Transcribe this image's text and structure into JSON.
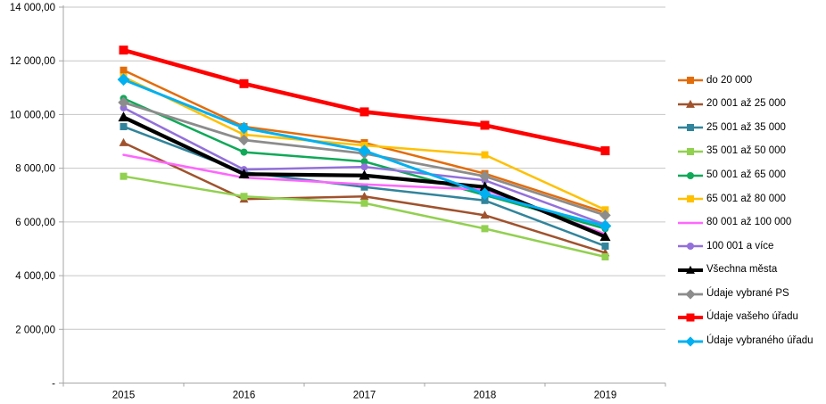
{
  "chart_data": {
    "type": "line",
    "title": "",
    "xlabel": "",
    "ylabel": "",
    "grid": true,
    "legend_position": "right",
    "categories": [
      "2015",
      "2016",
      "2017",
      "2018",
      "2019"
    ],
    "y_axis": {
      "min": 0,
      "max": 14000,
      "step": 2000,
      "ticks": [
        {
          "value": 14000,
          "label": "14 000,00"
        },
        {
          "value": 12000,
          "label": "12 000,00"
        },
        {
          "value": 10000,
          "label": "10 000,00"
        },
        {
          "value": 8000,
          "label": "8 000,00"
        },
        {
          "value": 6000,
          "label": "6 000,00"
        },
        {
          "value": 4000,
          "label": "4 000,00"
        },
        {
          "value": 2000,
          "label": "2 000,00"
        },
        {
          "value": 0,
          "label": "-"
        }
      ]
    },
    "series": [
      {
        "name": "do 20 000",
        "color": "#E36C0A",
        "marker": "square",
        "marker_size": 8,
        "line_width": 2.5,
        "values": [
          11650,
          9550,
          8950,
          7800,
          6350
        ]
      },
      {
        "name": "20 001 až 25 000",
        "color": "#A0522D",
        "marker": "triangle",
        "marker_size": 9,
        "line_width": 2.5,
        "values": [
          8950,
          6850,
          6950,
          6250,
          4850
        ]
      },
      {
        "name": "25 001 až 35 000",
        "color": "#31849B",
        "marker": "square",
        "marker_size": 8,
        "line_width": 2.5,
        "values": [
          9550,
          7850,
          7300,
          6800,
          5100
        ]
      },
      {
        "name": "35 001 až 50 000",
        "color": "#92D050",
        "marker": "square",
        "marker_size": 8,
        "line_width": 2.5,
        "values": [
          7700,
          6950,
          6700,
          5750,
          4700
        ]
      },
      {
        "name": "50 001 až 65 000",
        "color": "#0FA958",
        "marker": "circle",
        "marker_size": 8,
        "line_width": 2.5,
        "values": [
          10600,
          8600,
          8250,
          7000,
          5750
        ]
      },
      {
        "name": "65 001 až 80 000",
        "color": "#FFC000",
        "marker": "square",
        "marker_size": 8,
        "line_width": 2.5,
        "values": [
          11400,
          9250,
          8850,
          8500,
          6450
        ]
      },
      {
        "name": "80 001 až 100 000",
        "color": "#FF66FF",
        "marker": "none",
        "marker_size": 0,
        "line_width": 2.5,
        "values": [
          8500,
          7650,
          7400,
          7200,
          5550
        ]
      },
      {
        "name": "100 001 a více",
        "color": "#9370DB",
        "marker": "circle",
        "marker_size": 8,
        "line_width": 2.5,
        "values": [
          10250,
          7950,
          8050,
          7550,
          5900
        ]
      },
      {
        "name": "Všechna města",
        "color": "#000000",
        "marker": "triangle",
        "marker_size": 11,
        "line_width": 4.2,
        "values": [
          9900,
          7780,
          7730,
          7300,
          5450
        ]
      },
      {
        "name": "Údaje vybrané PS",
        "color": "#8C8C8C",
        "marker": "diamond",
        "marker_size": 10,
        "line_width": 2.8,
        "values": [
          10450,
          9050,
          8550,
          7700,
          6250
        ]
      },
      {
        "name": "Údaje vašeho úřadu",
        "color": "#FF0000",
        "marker": "square",
        "marker_size": 10,
        "line_width": 4.5,
        "values": [
          12400,
          11150,
          10100,
          9600,
          8650
        ]
      },
      {
        "name": "Údaje vybraného úřadu",
        "color": "#00B0F0",
        "marker": "diamond",
        "marker_size": 11,
        "line_width": 3.0,
        "values": [
          11300,
          9500,
          8650,
          7050,
          5850
        ]
      }
    ]
  },
  "style": {
    "gridline_color": "#C6C6C6",
    "axis_color": "#A6A6A6",
    "text_color": "#000000",
    "background": "#FFFFFF"
  }
}
